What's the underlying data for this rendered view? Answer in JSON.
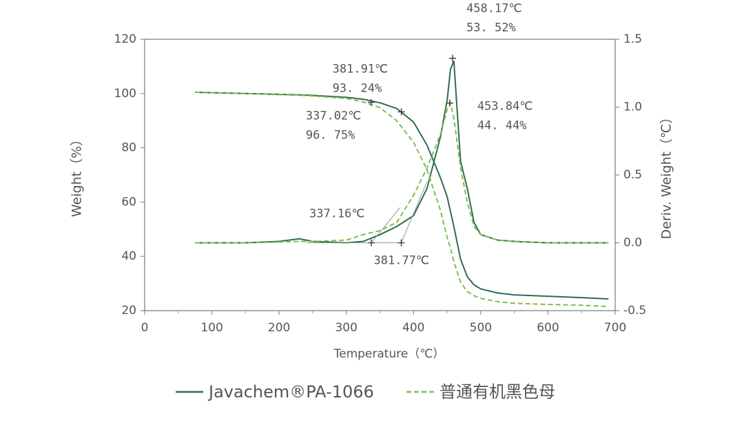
{
  "chart_data": {
    "type": "line",
    "xlabel": "Temperature（℃）",
    "ylabel": "Weight（%）",
    "y2label": "Deriv. Weight（℃）",
    "x": [
      75,
      100,
      150,
      200,
      230,
      250,
      300,
      325,
      350,
      375,
      400,
      420,
      440,
      450,
      455,
      460,
      470,
      480,
      490,
      500,
      525,
      550,
      600,
      650,
      690
    ],
    "series": [
      {
        "name": "Javachem®PA-1066",
        "color": "#2e6b4f",
        "dash": false,
        "values": [
          100.5,
          100.3,
          100.0,
          99.7,
          99.5,
          99.3,
          98.6,
          97.9,
          96.6,
          94.5,
          89.5,
          81,
          69,
          62,
          56.5,
          51,
          39,
          32.5,
          29.5,
          28,
          26.5,
          25.8,
          25.3,
          24.8,
          24.3
        ],
        "y2_values": [
          0,
          0,
          0,
          0.01,
          0.03,
          0.01,
          0,
          0.01,
          0.06,
          0.12,
          0.2,
          0.4,
          0.78,
          1.05,
          1.28,
          1.34,
          0.6,
          0.4,
          0.15,
          0.06,
          0.02,
          0.01,
          0,
          0,
          0
        ]
      },
      {
        "name": "普通有机黑色母",
        "color": "#7dbf4a",
        "dash": true,
        "values": [
          100.5,
          100.3,
          100.0,
          99.6,
          99.4,
          99.1,
          98.2,
          96.9,
          94.8,
          90,
          82,
          72,
          57,
          47,
          43,
          38,
          30.5,
          27,
          25.5,
          24.5,
          23.3,
          22.7,
          22.3,
          22,
          21.5
        ],
        "y2_values": [
          0,
          0,
          0,
          0.005,
          0.01,
          0.01,
          0.02,
          0.06,
          0.09,
          0.15,
          0.35,
          0.55,
          0.8,
          0.98,
          1.03,
          0.92,
          0.55,
          0.3,
          0.12,
          0.06,
          0.02,
          0.01,
          0,
          0,
          0
        ]
      }
    ],
    "xlim": [
      0,
      700
    ],
    "xticks": [
      0,
      100,
      200,
      300,
      400,
      500,
      600,
      700
    ],
    "ylim": [
      20,
      120
    ],
    "yticks": [
      20,
      40,
      60,
      80,
      100,
      120
    ],
    "y2lim": [
      -0.5,
      1.5
    ],
    "y2ticks": [
      -0.5,
      {
        "value": 0,
        "label": "0.0"
      },
      0.5,
      {
        "value": 1,
        "label": "1.0"
      },
      1.5
    ],
    "annotations": [
      {
        "x": 337.02,
        "y": 96.75,
        "text": [
          "337.02℃",
          "96. 75%"
        ]
      },
      {
        "x": 381.91,
        "y": 93.24,
        "text": [
          "381.91℃",
          "93. 24%"
        ]
      },
      {
        "x": 458.17,
        "y2": 1.36,
        "text": [
          "458.17℃",
          "53. 52%"
        ]
      },
      {
        "x": 453.84,
        "y2": 1.03,
        "text": [
          "453.84℃",
          "44. 44%"
        ]
      },
      {
        "x": 337.16,
        "y2": 0,
        "text": [
          "337.16℃"
        ]
      },
      {
        "x": 381.77,
        "y2": 0,
        "text": [
          "381.77℃"
        ]
      }
    ]
  }
}
